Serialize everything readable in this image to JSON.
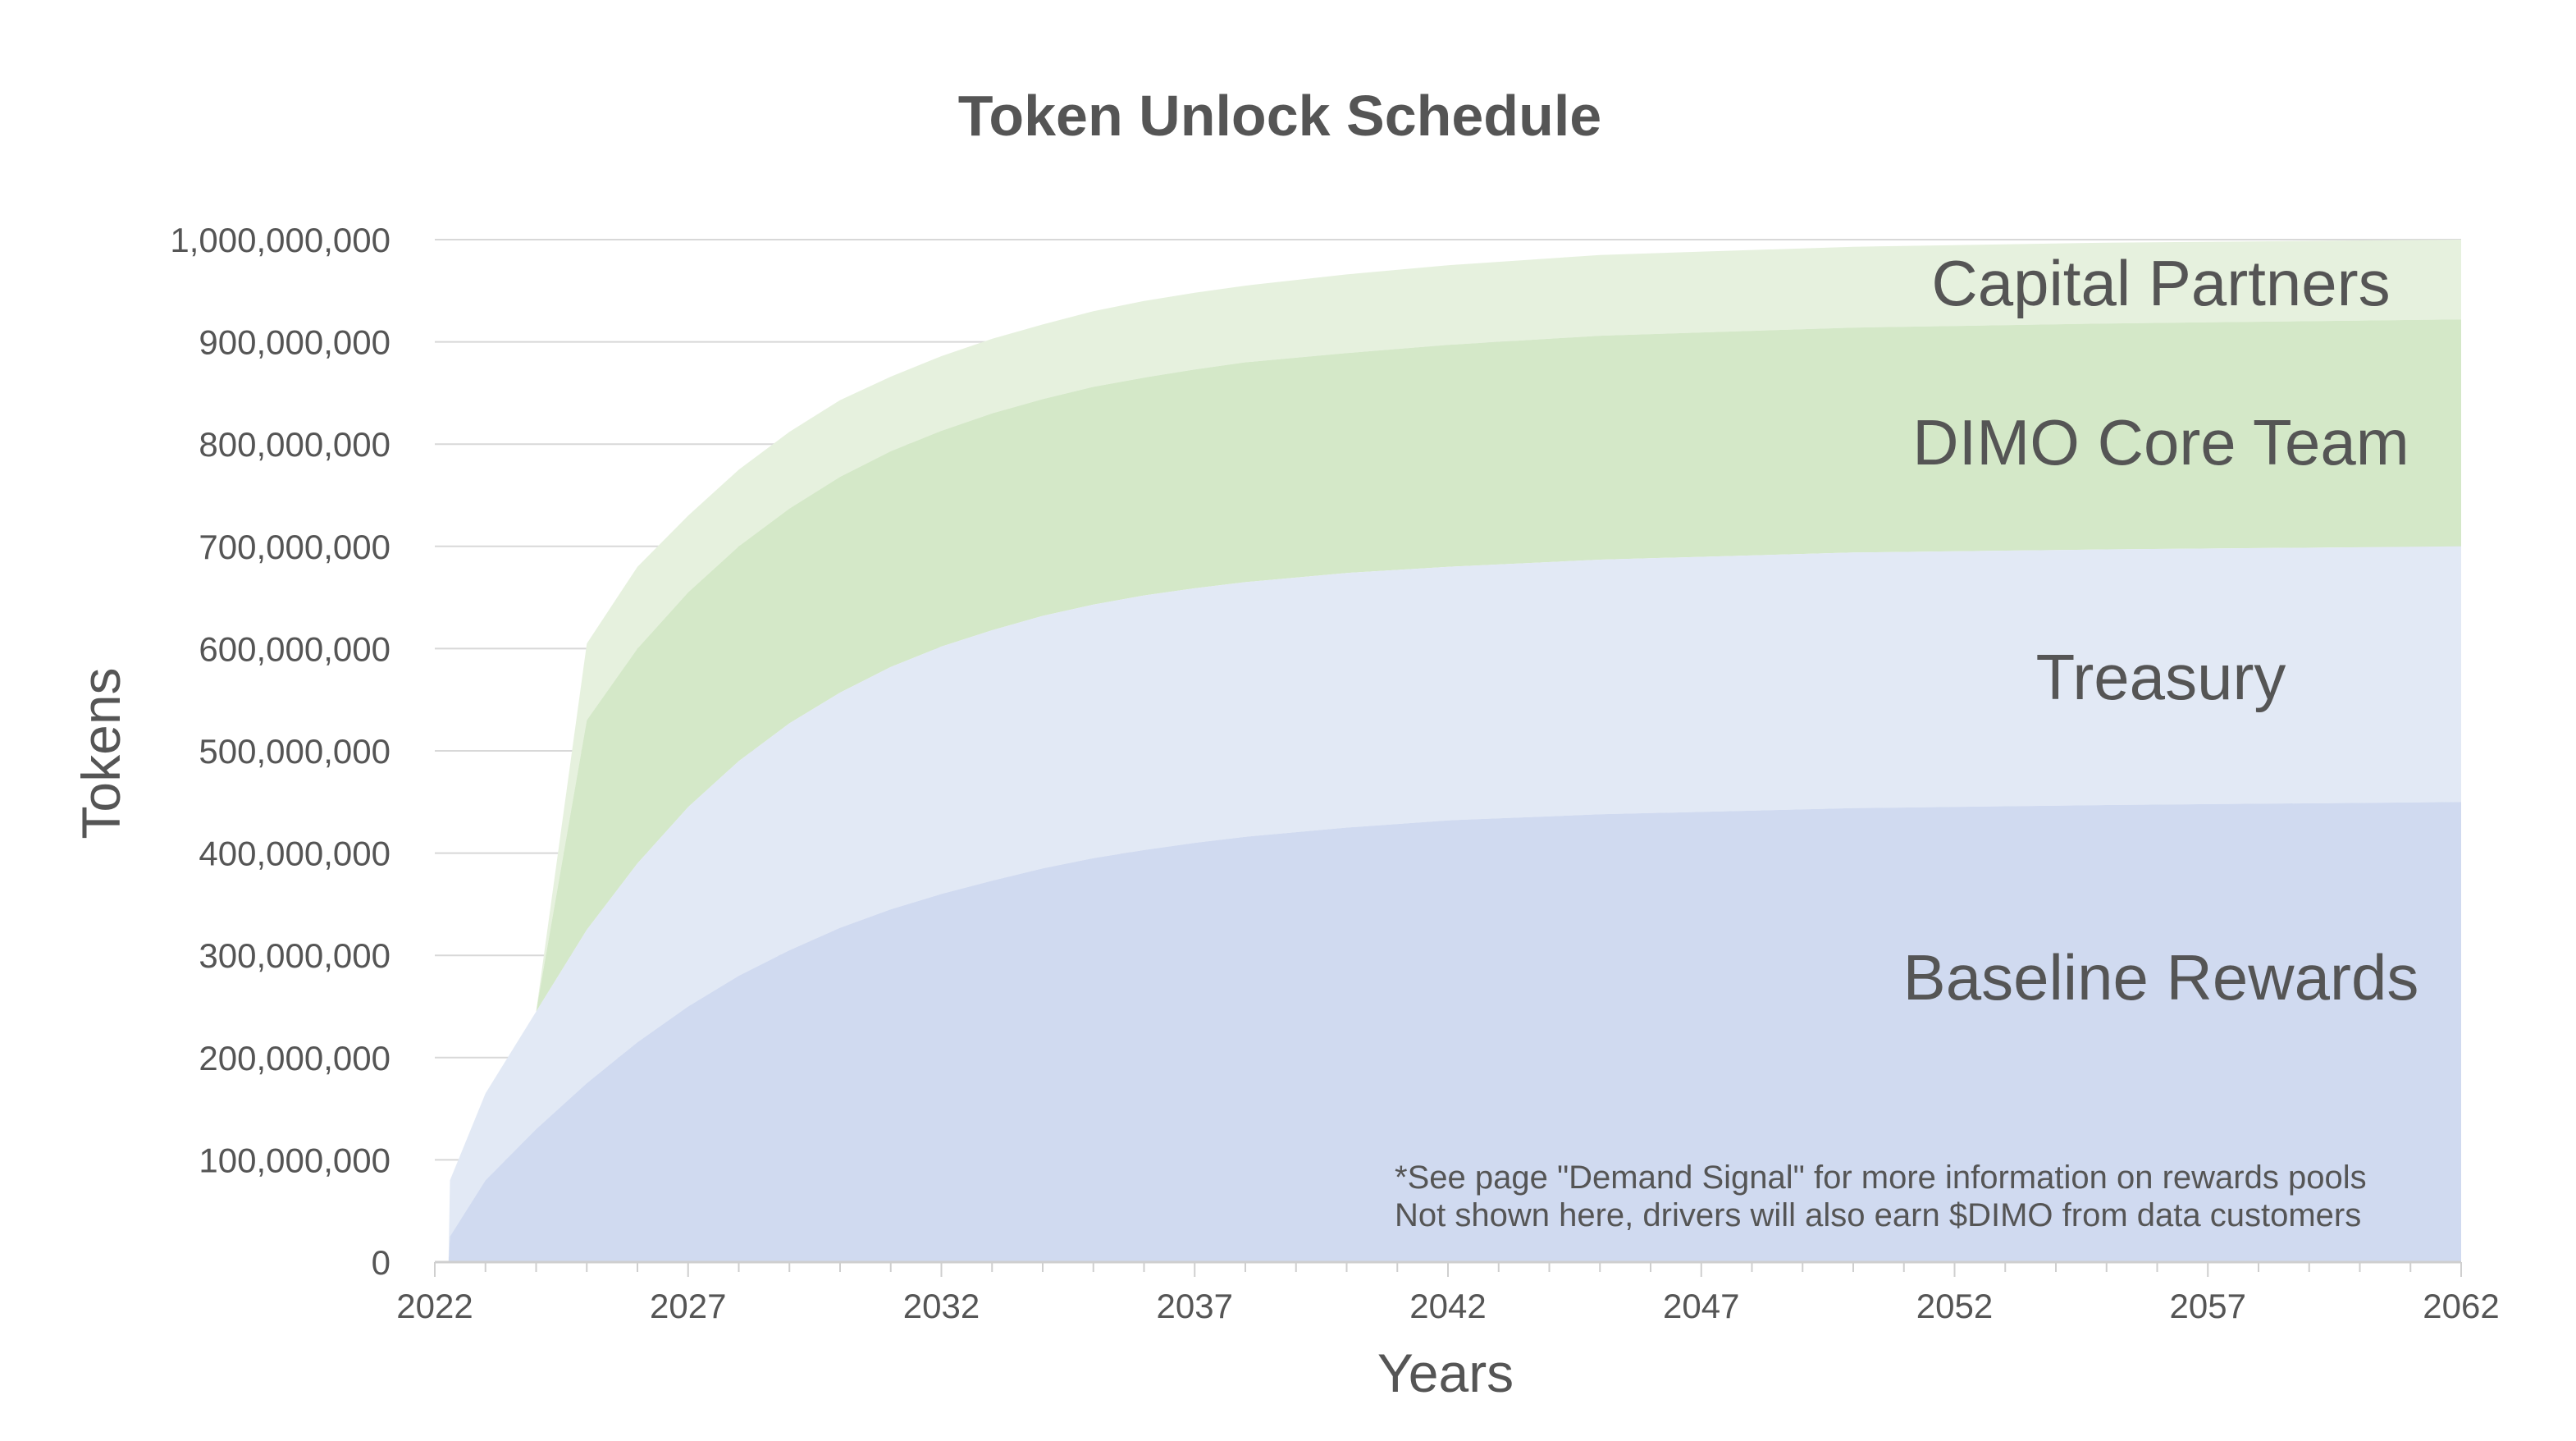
{
  "chart_data": {
    "type": "area",
    "stacked": true,
    "title": "Token Unlock Schedule",
    "xlabel": "Years",
    "ylabel": "Tokens",
    "xlim": [
      2022,
      2062
    ],
    "ylim": [
      0,
      1000000000
    ],
    "x_ticks": [
      "2022",
      "2027",
      "2032",
      "2037",
      "2042",
      "2047",
      "2052",
      "2057",
      "2062"
    ],
    "y_ticks": [
      "0",
      "100,000,000",
      "200,000,000",
      "300,000,000",
      "400,000,000",
      "500,000,000",
      "600,000,000",
      "700,000,000",
      "800,000,000",
      "900,000,000",
      "1,000,000,000"
    ],
    "grid": true,
    "legend": "inline labels",
    "x": [
      2022.27,
      2022.3,
      2023,
      2024,
      2025,
      2026,
      2027,
      2028,
      2029,
      2030,
      2031,
      2032,
      2033,
      2034,
      2035,
      2036,
      2037,
      2038,
      2040,
      2042,
      2045,
      2050,
      2055,
      2062
    ],
    "series": [
      {
        "name": "Baseline Rewards",
        "color": "#d0daf0",
        "cumulative": [
          0,
          25000000,
          80000000,
          130000000,
          175000000,
          215000000,
          250000000,
          280000000,
          305000000,
          327000000,
          345000000,
          360000000,
          373000000,
          385000000,
          395000000,
          403000000,
          410000000,
          416000000,
          425000000,
          432000000,
          438000000,
          444000000,
          447000000,
          450000000
        ]
      },
      {
        "name": "Treasury",
        "color": "#e2e9f5",
        "cumulative": [
          0,
          80000000,
          165000000,
          245000000,
          325000000,
          390000000,
          445000000,
          490000000,
          527000000,
          557000000,
          582000000,
          602000000,
          618000000,
          632000000,
          643000000,
          652000000,
          659000000,
          665000000,
          674000000,
          680000000,
          687000000,
          694000000,
          697000000,
          700000000
        ]
      },
      {
        "name": "DIMO Core Team",
        "color": "#d4e8c8",
        "cumulative": [
          0,
          80000000,
          165000000,
          245000000,
          530000000,
          600000000,
          655000000,
          700000000,
          737000000,
          768000000,
          793000000,
          813000000,
          830000000,
          844000000,
          856000000,
          865000000,
          873000000,
          880000000,
          889000000,
          897000000,
          906000000,
          914000000,
          918000000,
          922000000
        ]
      },
      {
        "name": "Capital Partners",
        "color": "#e6f1de",
        "cumulative": [
          0,
          80000000,
          165000000,
          245000000,
          605000000,
          680000000,
          730000000,
          775000000,
          812000000,
          843000000,
          866000000,
          886000000,
          903000000,
          917000000,
          930000000,
          940000000,
          948000000,
          955000000,
          966000000,
          975000000,
          985000000,
          993000000,
          997000000,
          1000000000
        ]
      }
    ],
    "series_labels": {
      "capital": "Capital Partners",
      "core": "DIMO Core Team",
      "treasury": "Treasury",
      "baseline": "Baseline Rewards"
    },
    "annotations": [
      "*See page \"Demand Signal\" for more information on rewards pools",
      "Not shown here, drivers will also earn $DIMO from data customers"
    ]
  }
}
